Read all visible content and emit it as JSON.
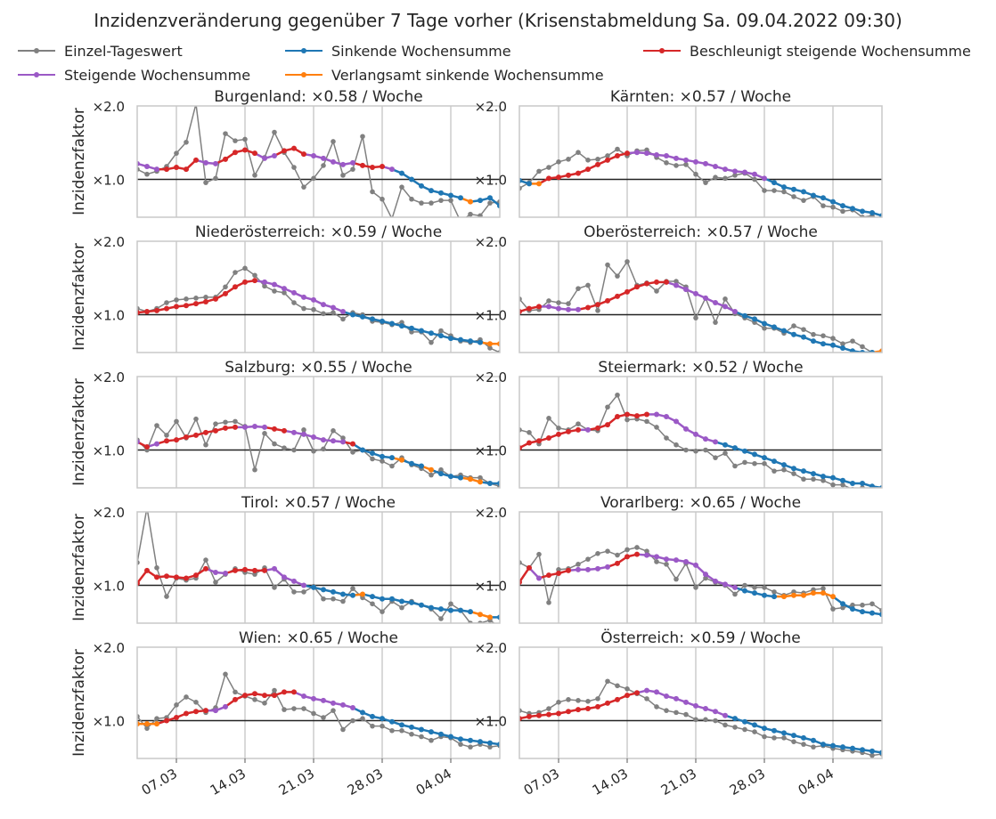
{
  "chart_data": {
    "type": "line",
    "title": "Inzidenzveränderung gegenüber 7 Tage vorher (Krisenstabmeldung Sa. 09.04.2022 09:30)",
    "ylabel": "Inzidenzfaktor",
    "yticks": [
      "×2.0",
      "×1.0"
    ],
    "y_scale": "log",
    "ylim": [
      0.7,
      2.0
    ],
    "x_range": [
      "2022-03-03",
      "2022-04-09"
    ],
    "xticks": [
      {
        "date": "2022-03-07",
        "label": "07.03"
      },
      {
        "date": "2022-03-14",
        "label": "14.03"
      },
      {
        "date": "2022-03-21",
        "label": "21.03"
      },
      {
        "date": "2022-03-28",
        "label": "28.03"
      },
      {
        "date": "2022-04-04",
        "label": "04.04"
      }
    ],
    "legend": {
      "placement": "top",
      "entries": [
        {
          "label": "Einzel-Tageswert",
          "color": "#808080"
        },
        {
          "label": "Sinkende Wochensumme",
          "color": "#1f77b4"
        },
        {
          "label": "Beschleunigt steigende Wochensumme",
          "color": "#d62728"
        },
        {
          "label": "Steigende Wochensumme",
          "color": "#9b59c6"
        },
        {
          "label": "Verlangsamt sinkende Wochensumme",
          "color": "#ff7f0e"
        }
      ]
    },
    "class_colors": {
      "B": "#1f77b4",
      "R": "#d62728",
      "P": "#9b59c6",
      "O": "#ff7f0e"
    },
    "panels": [
      {
        "label": "Burgenland: ×0.58 / Woche",
        "weekly": [
          1.16,
          1.13,
          1.1,
          1.1,
          1.12,
          1.1,
          1.2,
          1.17,
          1.16,
          1.21,
          1.29,
          1.32,
          1.28,
          1.22,
          1.25,
          1.31,
          1.34,
          1.27,
          1.25,
          1.22,
          1.18,
          1.15,
          1.17,
          1.14,
          1.12,
          1.13,
          1.1,
          1.06,
          1.0,
          0.94,
          0.9,
          0.88,
          0.86,
          0.84,
          0.81,
          0.82,
          0.84,
          0.78,
          0.79,
          0.8,
          0.78,
          0.76,
          0.76,
          0.75,
          0.73
        ],
        "classes": "PPPRRRRPPRRRRPPRRRPPPPPRRRPBBBBBBBOBBBBOOOOBB",
        "daily": [
          1.1,
          1.05,
          1.08,
          1.13,
          1.28,
          1.42,
          2.04,
          0.97,
          1.01,
          1.54,
          1.44,
          1.46,
          1.04,
          1.23,
          1.56,
          1.29,
          1.12,
          0.93,
          1.01,
          1.14,
          1.43,
          1.04,
          1.1,
          1.5,
          0.89,
          0.83,
          0.69,
          0.93,
          0.83,
          0.8,
          0.8,
          0.82,
          0.82,
          0.6,
          0.72,
          0.71,
          0.8,
          0.81,
          0.8,
          0.75,
          0.73,
          0.72,
          0.75,
          0.72,
          0.8
        ]
      },
      {
        "label": "Kärnten: ×0.57 / Woche",
        "weekly": [
          0.99,
          0.96,
          0.96,
          1.01,
          1.02,
          1.04,
          1.06,
          1.1,
          1.15,
          1.2,
          1.25,
          1.28,
          1.29,
          1.28,
          1.26,
          1.25,
          1.22,
          1.2,
          1.18,
          1.16,
          1.13,
          1.1,
          1.08,
          1.07,
          1.05,
          1.01,
          0.97,
          0.93,
          0.91,
          0.89,
          0.86,
          0.84,
          0.81,
          0.78,
          0.76,
          0.74,
          0.73,
          0.71,
          0.7,
          0.69,
          0.68,
          0.66,
          0.66,
          0.66,
          0.66
        ],
        "classes": "BBORRRRRRRRRPPPPPPPPPPPPPPBBBBBBBBBBBBBBBBBOO",
        "daily": [
          0.92,
          0.97,
          1.08,
          1.12,
          1.18,
          1.21,
          1.29,
          1.2,
          1.21,
          1.25,
          1.33,
          1.25,
          1.31,
          1.32,
          1.23,
          1.17,
          1.14,
          1.15,
          1.05,
          0.97,
          1.02,
          1.01,
          1.04,
          1.06,
          1.0,
          0.9,
          0.9,
          0.89,
          0.85,
          0.82,
          0.85,
          0.78,
          0.77,
          0.74,
          0.75,
          0.7,
          0.71,
          0.67,
          0.66,
          0.65,
          0.65,
          0.62,
          0.62,
          0.67,
          0.68
        ]
      },
      {
        "label": "Niederösterreich: ×0.59 / Woche",
        "weekly": [
          1.02,
          1.03,
          1.04,
          1.06,
          1.08,
          1.09,
          1.11,
          1.13,
          1.16,
          1.22,
          1.3,
          1.36,
          1.38,
          1.36,
          1.33,
          1.28,
          1.23,
          1.18,
          1.15,
          1.1,
          1.07,
          1.03,
          1.0,
          0.98,
          0.96,
          0.94,
          0.92,
          0.9,
          0.88,
          0.86,
          0.84,
          0.82,
          0.8,
          0.79,
          0.78,
          0.77,
          0.76,
          0.76,
          0.74,
          0.73,
          0.72,
          0.71,
          0.7,
          0.7,
          0.69
        ],
        "classes": "RRRRRRRRRRRRRPPPPPPPPPBBBBBBBBBBBBBBOOBBBBBBB",
        "daily": [
          1.06,
          1.03,
          1.06,
          1.12,
          1.15,
          1.16,
          1.17,
          1.18,
          1.18,
          1.3,
          1.49,
          1.55,
          1.45,
          1.31,
          1.25,
          1.23,
          1.12,
          1.06,
          1.05,
          1.01,
          1.02,
          0.96,
          1.02,
          1.0,
          0.94,
          0.93,
          0.91,
          0.93,
          0.85,
          0.85,
          0.77,
          0.86,
          0.82,
          0.78,
          0.77,
          0.79,
          0.73,
          0.7,
          0.78,
          0.72,
          0.74,
          0.7,
          0.72,
          0.71,
          0.69
        ]
      },
      {
        "label": "Oberösterreich: ×0.57 / Woche",
        "weekly": [
          1.03,
          1.06,
          1.08,
          1.08,
          1.06,
          1.05,
          1.05,
          1.07,
          1.1,
          1.14,
          1.19,
          1.24,
          1.3,
          1.34,
          1.36,
          1.36,
          1.32,
          1.27,
          1.22,
          1.17,
          1.12,
          1.08,
          1.03,
          0.99,
          0.96,
          0.92,
          0.89,
          0.86,
          0.83,
          0.81,
          0.78,
          0.76,
          0.75,
          0.73,
          0.71,
          0.7,
          0.7,
          0.71,
          0.7,
          0.71,
          0.71,
          0.7,
          0.71,
          0.71,
          0.71
        ],
        "classes": "RRRPPPPRRRRRRRRRPPPPPPPBBBBBBBBBBBBBBOBBBBOBO",
        "daily": [
          1.16,
          1.04,
          1.05,
          1.14,
          1.12,
          1.11,
          1.28,
          1.32,
          1.04,
          1.6,
          1.44,
          1.65,
          1.32,
          1.35,
          1.25,
          1.37,
          1.37,
          1.3,
          0.97,
          1.17,
          0.93,
          1.16,
          1.01,
          0.97,
          0.93,
          0.88,
          0.88,
          0.84,
          0.9,
          0.87,
          0.83,
          0.82,
          0.8,
          0.76,
          0.78,
          0.74,
          0.7,
          0.68,
          0.7,
          0.67,
          0.71,
          0.72,
          0.73,
          0.72,
          0.7
        ]
      },
      {
        "label": "Salzburg: ×0.55 / Woche",
        "weekly": [
          1.08,
          1.03,
          1.06,
          1.09,
          1.1,
          1.13,
          1.15,
          1.18,
          1.2,
          1.23,
          1.24,
          1.24,
          1.25,
          1.24,
          1.22,
          1.2,
          1.18,
          1.16,
          1.13,
          1.1,
          1.09,
          1.08,
          1.06,
          1.0,
          0.97,
          0.94,
          0.93,
          0.91,
          0.88,
          0.86,
          0.83,
          0.8,
          0.78,
          0.77,
          0.76,
          0.74,
          0.73,
          0.73,
          0.73,
          0.71,
          0.71,
          0.71,
          0.7,
          0.7,
          0.7
        ],
        "classes": "PRPRRRRRRRRPPPRRPPPPPPRBBBBOBBOBBBOOBBBBBBBOO",
        "daily": [
          1.1,
          1.0,
          1.26,
          1.15,
          1.31,
          1.12,
          1.34,
          1.05,
          1.28,
          1.3,
          1.31,
          1.25,
          0.83,
          1.17,
          1.06,
          1.02,
          1.0,
          1.21,
          0.99,
          1.01,
          1.2,
          1.12,
          0.98,
          1.0,
          0.92,
          0.9,
          0.86,
          0.93,
          0.87,
          0.84,
          0.79,
          0.83,
          0.78,
          0.79,
          0.77,
          0.77,
          0.73,
          0.71,
          0.74,
          0.71,
          0.73,
          0.72,
          0.72,
          0.7,
          0.71
        ]
      },
      {
        "label": "Steiermark: ×0.52 / Woche",
        "weekly": [
          1.02,
          1.07,
          1.09,
          1.12,
          1.16,
          1.19,
          1.21,
          1.21,
          1.23,
          1.27,
          1.37,
          1.4,
          1.38,
          1.4,
          1.4,
          1.37,
          1.31,
          1.22,
          1.16,
          1.11,
          1.08,
          1.05,
          1.02,
          0.99,
          0.96,
          0.93,
          0.9,
          0.87,
          0.84,
          0.82,
          0.8,
          0.78,
          0.77,
          0.75,
          0.73,
          0.73,
          0.71,
          0.7,
          0.69,
          0.68,
          0.67,
          0.66,
          0.66,
          0.67,
          0.69
        ],
        "classes": "RRRRRRRPRRRRRRPPPPPPPBBBBBBBBBBBBBBBBBBBBBOOO",
        "daily": [
          1.21,
          1.18,
          1.06,
          1.35,
          1.23,
          1.21,
          1.28,
          1.21,
          1.2,
          1.5,
          1.68,
          1.33,
          1.34,
          1.31,
          1.24,
          1.12,
          1.05,
          1.0,
          0.99,
          1.0,
          0.93,
          0.97,
          0.86,
          0.89,
          0.88,
          0.88,
          0.82,
          0.83,
          0.8,
          0.76,
          0.76,
          0.75,
          0.72,
          0.72,
          0.69,
          0.7,
          0.69,
          0.67,
          0.67,
          0.66,
          0.69,
          0.69,
          0.74,
          0.7,
          0.75
        ]
      },
      {
        "label": "Tirol: ×0.57 / Woche",
        "weekly": [
          1.02,
          1.15,
          1.08,
          1.09,
          1.08,
          1.07,
          1.1,
          1.17,
          1.13,
          1.12,
          1.15,
          1.16,
          1.15,
          1.15,
          1.17,
          1.08,
          1.04,
          1.0,
          0.98,
          0.96,
          0.94,
          0.92,
          0.91,
          0.92,
          0.9,
          0.88,
          0.88,
          0.86,
          0.85,
          0.83,
          0.81,
          0.8,
          0.79,
          0.79,
          0.78,
          0.76,
          0.74,
          0.74,
          0.73,
          0.72,
          0.72,
          0.71,
          0.7,
          0.7,
          0.7
        ],
        "classes": "RRRRRRRRPPRRRRPPPPBBBBBOBBBBBBBBBBBOOBBBBOBBB",
        "daily": [
          1.24,
          2.4,
          1.18,
          0.9,
          1.07,
          1.05,
          1.07,
          1.27,
          1.03,
          1.11,
          1.17,
          1.13,
          1.11,
          1.18,
          0.98,
          1.06,
          0.94,
          0.94,
          0.99,
          0.88,
          0.88,
          0.86,
          0.97,
          0.89,
          0.84,
          0.78,
          0.86,
          0.81,
          0.86,
          0.83,
          0.8,
          0.73,
          0.84,
          0.79,
          0.7,
          0.7,
          0.72,
          0.67,
          0.66,
          0.79,
          0.72,
          0.72,
          0.72,
          0.7,
          0.74
        ]
      },
      {
        "label": "Vorarlberg: ×0.65 / Woche",
        "weekly": [
          1.03,
          1.18,
          1.07,
          1.1,
          1.12,
          1.15,
          1.16,
          1.16,
          1.17,
          1.19,
          1.23,
          1.31,
          1.34,
          1.33,
          1.31,
          1.28,
          1.27,
          1.25,
          1.21,
          1.11,
          1.04,
          1.01,
          0.98,
          0.95,
          0.93,
          0.91,
          0.9,
          0.9,
          0.91,
          0.91,
          0.93,
          0.93,
          0.9,
          0.84,
          0.8,
          0.78,
          0.77,
          0.76,
          0.77,
          0.75,
          0.75,
          0.74,
          0.75,
          0.75,
          0.76
        ],
        "classes": "RRPRRRPPPPRRRPPPPPPPPPPBBBBOOOOOOBBBBBBBOOOOO",
        "daily": [
          1.24,
          1.18,
          1.34,
          0.85,
          1.16,
          1.17,
          1.22,
          1.28,
          1.35,
          1.38,
          1.33,
          1.4,
          1.43,
          1.38,
          1.25,
          1.22,
          1.06,
          1.23,
          0.98,
          1.07,
          1.03,
          1.0,
          0.92,
          1.0,
          0.98,
          0.98,
          0.94,
          0.91,
          0.94,
          0.93,
          0.96,
          0.97,
          0.8,
          0.81,
          0.83,
          0.83,
          0.84,
          0.79,
          0.87,
          0.74,
          0.76,
          0.8,
          0.77,
          0.82,
          0.8
        ]
      },
      {
        "label": "Wien: ×0.65 / Woche",
        "weekly": [
          0.97,
          0.97,
          0.97,
          1.0,
          1.03,
          1.07,
          1.09,
          1.1,
          1.1,
          1.14,
          1.22,
          1.27,
          1.29,
          1.27,
          1.27,
          1.31,
          1.31,
          1.26,
          1.23,
          1.21,
          1.18,
          1.16,
          1.13,
          1.08,
          1.04,
          1.02,
          0.99,
          0.96,
          0.94,
          0.92,
          0.9,
          0.88,
          0.86,
          0.84,
          0.83,
          0.82,
          0.81,
          0.8,
          0.78,
          0.77,
          0.77,
          0.76,
          0.74,
          0.75,
          0.75
        ],
        "classes": "OOORRRRRPPRRRRRRRPPPPPPBBBBBBBBBBBBBBBBBBBOBO",
        "daily": [
          1.04,
          0.93,
          1.02,
          1.03,
          1.16,
          1.25,
          1.19,
          1.08,
          1.13,
          1.55,
          1.31,
          1.26,
          1.22,
          1.18,
          1.33,
          1.11,
          1.12,
          1.12,
          1.07,
          1.03,
          1.1,
          0.92,
          1.0,
          1.02,
          0.95,
          0.95,
          0.91,
          0.91,
          0.88,
          0.86,
          0.83,
          0.86,
          0.85,
          0.8,
          0.78,
          0.8,
          0.78,
          0.79,
          0.72,
          0.72,
          0.78,
          0.77,
          0.74,
          0.68,
          0.81
        ]
      },
      {
        "label": "Österreich: ×0.59 / Woche",
        "weekly": [
          1.02,
          1.04,
          1.05,
          1.06,
          1.07,
          1.09,
          1.11,
          1.12,
          1.14,
          1.18,
          1.22,
          1.27,
          1.3,
          1.33,
          1.31,
          1.26,
          1.23,
          1.19,
          1.15,
          1.12,
          1.09,
          1.05,
          1.02,
          0.99,
          0.96,
          0.93,
          0.91,
          0.89,
          0.87,
          0.85,
          0.83,
          0.8,
          0.79,
          0.78,
          0.77,
          0.76,
          0.75,
          0.74,
          0.73,
          0.72,
          0.72,
          0.71,
          0.71,
          0.71,
          0.71
        ],
        "classes": "RRRRRRRRRRRRRPPPPPPPPPBBBBBBBBBBBBBBBBBBBBBBO",
        "daily": [
          1.1,
          1.07,
          1.08,
          1.12,
          1.19,
          1.22,
          1.21,
          1.2,
          1.23,
          1.45,
          1.39,
          1.35,
          1.29,
          1.23,
          1.14,
          1.1,
          1.08,
          1.06,
          1.01,
          1.01,
          1.0,
          0.96,
          0.94,
          0.92,
          0.9,
          0.86,
          0.85,
          0.85,
          0.82,
          0.8,
          0.78,
          0.79,
          0.77,
          0.76,
          0.75,
          0.74,
          0.72,
          0.73,
          0.71,
          0.7,
          0.72,
          0.7,
          0.71,
          0.72,
          0.73
        ]
      }
    ]
  }
}
